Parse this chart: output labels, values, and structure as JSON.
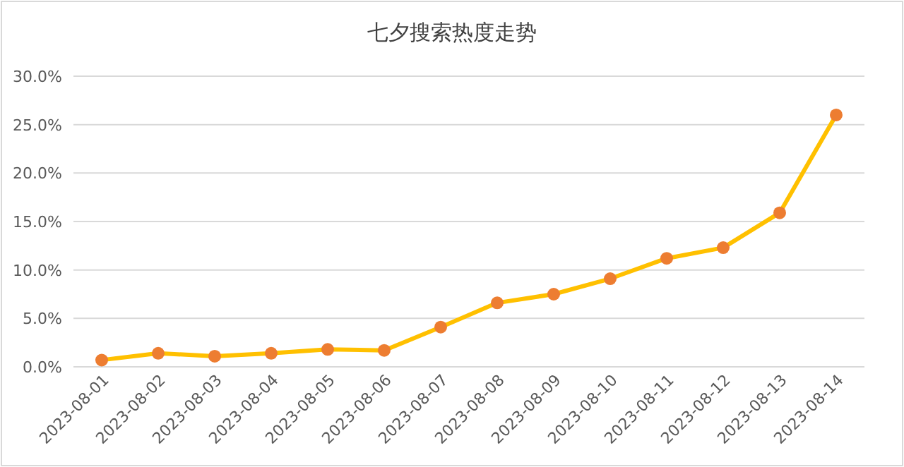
{
  "chart_data": {
    "type": "line",
    "title": "七夕搜索热度走势",
    "categories": [
      "2023-08-01",
      "2023-08-02",
      "2023-08-03",
      "2023-08-04",
      "2023-08-05",
      "2023-08-06",
      "2023-08-07",
      "2023-08-08",
      "2023-08-09",
      "2023-08-10",
      "2023-08-11",
      "2023-08-12",
      "2023-08-13",
      "2023-08-14"
    ],
    "series": [
      {
        "color": "#ffc000",
        "colors": [
          "#ed7d31",
          "#ed7d31",
          "#ed7d31",
          "#ed7d31",
          "#ed7d31",
          "#ed7d31",
          "#ed7d31",
          "#ed7d31",
          "#ed7d31",
          "#ed7d31",
          "#ed7d31",
          "#ed7d31",
          "#ed7d31",
          "#ed7d31"
        ],
        "values": [
          0.7,
          1.4,
          1.1,
          1.4,
          1.8,
          1.7,
          4.1,
          6.6,
          7.5,
          9.1,
          11.2,
          12.3,
          15.9,
          26.0
        ]
      }
    ],
    "ylim": [
      0,
      30
    ],
    "yticks": [
      {
        "value": 0,
        "label": "0.0%"
      },
      {
        "value": 5,
        "label": "5.0%"
      },
      {
        "value": 10,
        "label": "10.0%"
      },
      {
        "value": 15,
        "label": "15.0%"
      },
      {
        "value": 20,
        "label": "20.0%"
      },
      {
        "value": 25,
        "label": "25.0%"
      },
      {
        "value": 30,
        "label": "30.0%"
      }
    ],
    "grid": "y",
    "marker": "circle",
    "line_style": "solid"
  }
}
